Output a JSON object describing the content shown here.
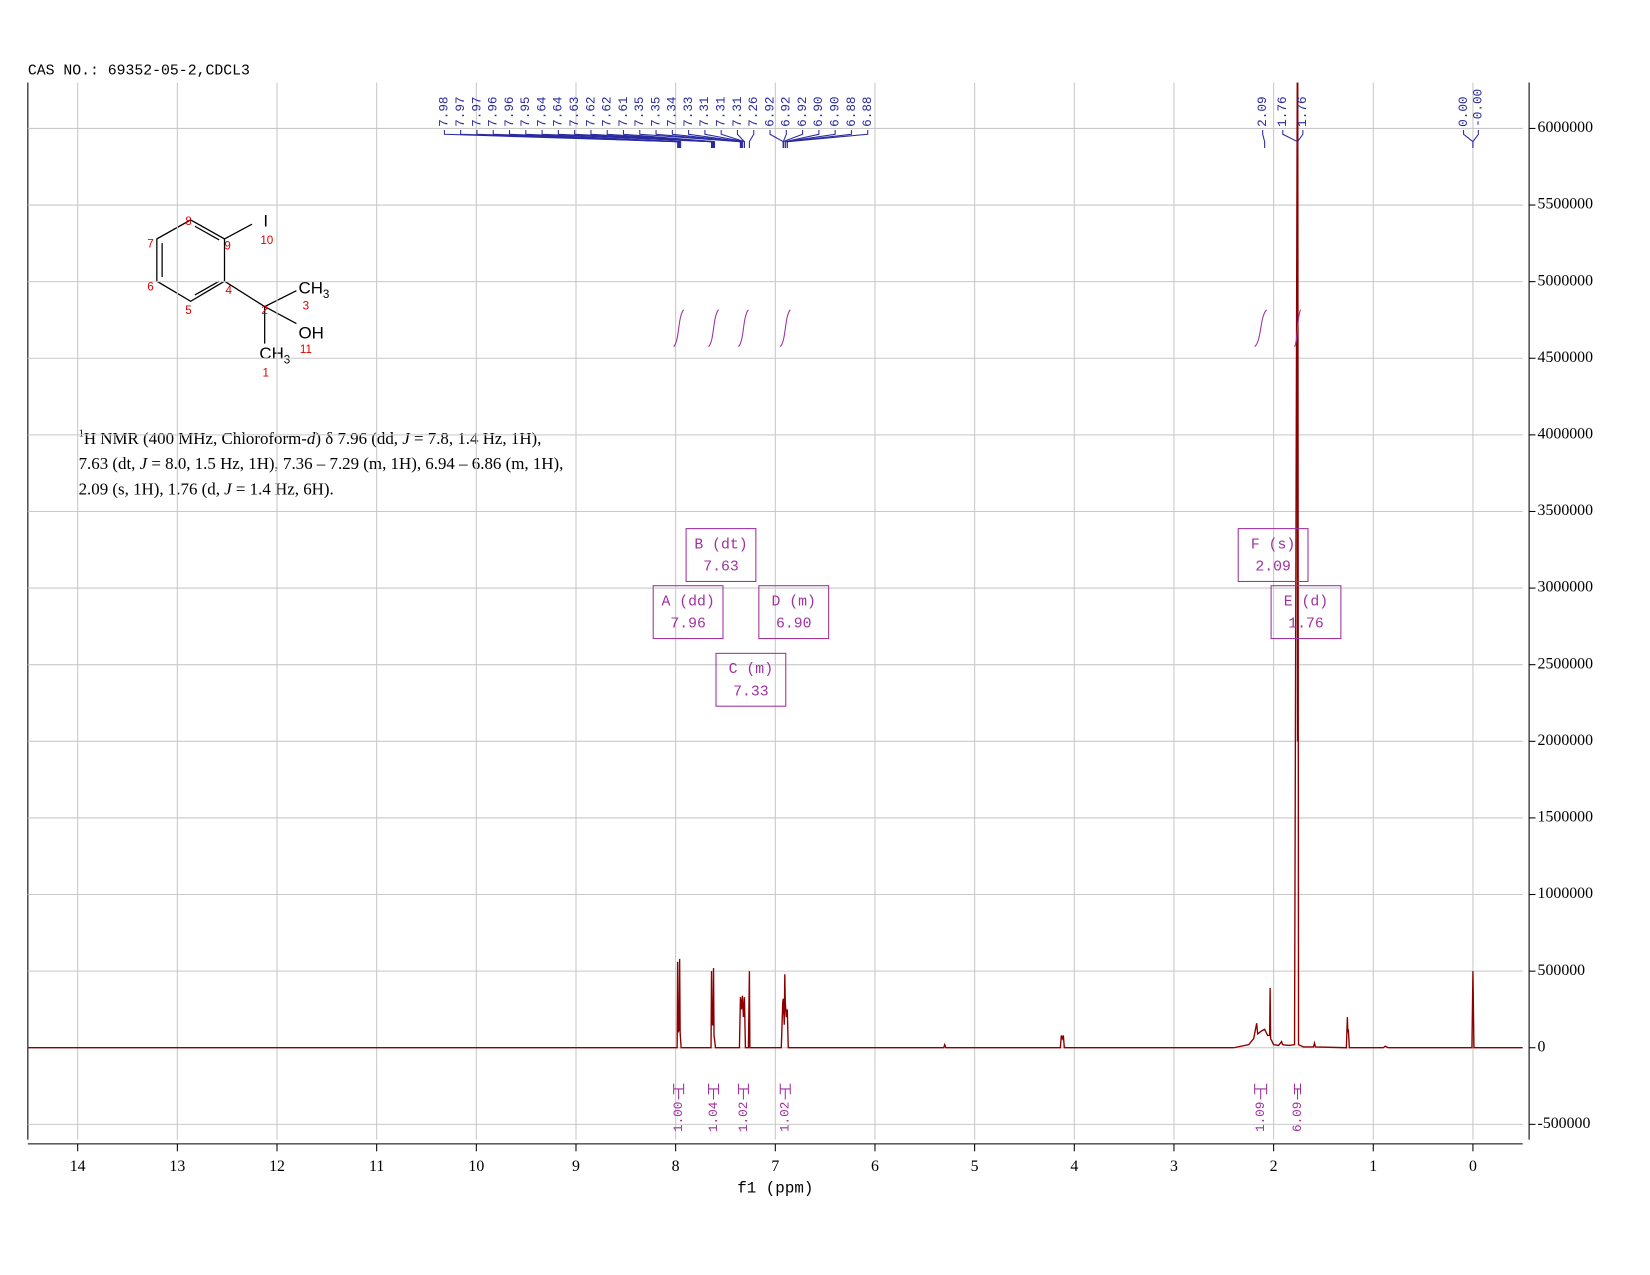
{
  "header": "CAS NO.: 69352-05-2,CDCL3",
  "structure": {
    "atom_numbers": [
      "8",
      "9",
      "10",
      "7",
      "6",
      "4",
      "5",
      "2",
      "3",
      "11",
      "1"
    ],
    "groups": [
      "I",
      "CH",
      "3",
      "OH",
      "CH",
      "3"
    ]
  },
  "description": [
    [
      "1",
      "H NMR (400 MHz, Chloroform-",
      "d",
      ") δ 7.96 (dd, ",
      "J",
      " = 7.8, 1.4 Hz, 1H),"
    ],
    [
      "7.63 (dt, ",
      "J",
      " = 8.0, 1.5 Hz, 1H), 7.36 – 7.29 (m, 1H), 6.94 – 6.86 (m, 1H),"
    ],
    [
      "2.09 (s, 1H), 1.76 (d, ",
      "J",
      " = 1.4 Hz, 6H)."
    ]
  ],
  "chart_data": {
    "type": "line",
    "xlabel": "f1 (ppm)",
    "xlim": [
      14.5,
      -0.5
    ],
    "xticks": [
      14,
      13,
      12,
      11,
      10,
      9,
      8,
      7,
      6,
      5,
      4,
      3,
      2,
      1,
      0
    ],
    "ylim": [
      -600000,
      6300000
    ],
    "yticks": [
      -500000,
      0,
      500000,
      1000000,
      1500000,
      2000000,
      2500000,
      3000000,
      3500000,
      4000000,
      4500000,
      5000000,
      5500000,
      6000000
    ],
    "grid": true,
    "series": [
      {
        "color": "#8b0000",
        "x": [
          14.5,
          8.01,
          7.985,
          7.98,
          7.975,
          7.965,
          7.96,
          7.955,
          7.945,
          7.66,
          7.645,
          7.64,
          7.635,
          7.625,
          7.62,
          7.615,
          7.6,
          7.36,
          7.35,
          7.34,
          7.33,
          7.32,
          7.31,
          7.3,
          7.27,
          7.26,
          7.255,
          6.94,
          6.925,
          6.92,
          6.91,
          6.905,
          6.9,
          6.89,
          6.88,
          6.87,
          5.31,
          5.3,
          5.29,
          4.14,
          4.13,
          4.12,
          4.11,
          4.1,
          2.4,
          2.25,
          2.2,
          2.17,
          2.16,
          2.12,
          2.09,
          2.06,
          2.04,
          2.035,
          2.03,
          2.0,
          1.95,
          1.92,
          1.91,
          1.85,
          1.79,
          1.762,
          1.76,
          1.758,
          1.75,
          1.7,
          1.6,
          1.59,
          1.58,
          1.27,
          1.26,
          1.255,
          1.25,
          1.24,
          0.9,
          0.88,
          0.85,
          0.01,
          0.0,
          -0.01,
          -0.5
        ],
        "values": [
          0,
          0,
          0,
          560000,
          100000,
          120000,
          580000,
          100000,
          0,
          0,
          0,
          500000,
          150000,
          150000,
          520000,
          80000,
          0,
          0,
          330000,
          250000,
          340000,
          200000,
          330000,
          0,
          0,
          500000,
          0,
          0,
          300000,
          320000,
          150000,
          480000,
          300000,
          200000,
          250000,
          0,
          0,
          20000,
          0,
          0,
          80000,
          60000,
          80000,
          0,
          0,
          20000,
          60000,
          160000,
          90000,
          110000,
          120000,
          80000,
          80000,
          390000,
          60000,
          20000,
          15000,
          40000,
          20000,
          15000,
          20000,
          6500000,
          2000000,
          6500000,
          20000,
          5000,
          5000,
          30000,
          5000,
          0,
          200000,
          100000,
          120000,
          0,
          0,
          10000,
          0,
          0,
          500000,
          0,
          0
        ]
      }
    ],
    "peaks": {
      "values": [
        7.98,
        7.97,
        7.97,
        7.96,
        7.96,
        7.95,
        7.64,
        7.64,
        7.63,
        7.62,
        7.62,
        7.61,
        7.35,
        7.35,
        7.34,
        7.33,
        7.31,
        7.31,
        7.31,
        7.26,
        6.92,
        6.92,
        6.92,
        6.9,
        6.9,
        6.88,
        6.88,
        2.09,
        1.76,
        1.76,
        0,
        0
      ],
      "value_labels": [
        "7.98",
        "7.97",
        "7.97",
        "7.96",
        "7.96",
        "7.95",
        "7.64",
        "7.64",
        "7.63",
        "7.62",
        "7.62",
        "7.61",
        "7.35",
        "7.35",
        "7.34",
        "7.33",
        "7.31",
        "7.31",
        "7.31",
        "7.26",
        "6.92",
        "6.92",
        "6.92",
        "6.90",
        "6.90",
        "6.88",
        "6.88",
        "2.09",
        "1.76",
        "1.76",
        "0.00",
        "-0.00"
      ]
    },
    "integrals": {
      "ranges": [
        [
          8.02,
          7.92
        ],
        [
          7.67,
          7.57
        ],
        [
          7.37,
          7.27
        ],
        [
          6.95,
          6.85
        ],
        [
          2.19,
          2.07
        ],
        [
          1.79,
          1.73
        ]
      ],
      "values": [
        1,
        1.04,
        1.02,
        1.02,
        1.09,
        6.09
      ],
      "value_labels": [
        "1.00",
        "1.04",
        "1.02",
        "1.02",
        "1.09",
        "6.09"
      ]
    },
    "multiplets": {
      "names": [
        "A (dd)",
        "B (dt)",
        "C (m)",
        "D (m)",
        "E (d)",
        "F (s)"
      ],
      "values": [
        7.96,
        7.63,
        7.33,
        6.9,
        1.76,
        2.09
      ],
      "value_labels": [
        "7.96",
        "7.63",
        "7.33",
        "6.90",
        "1.76",
        "2.09"
      ]
    }
  }
}
